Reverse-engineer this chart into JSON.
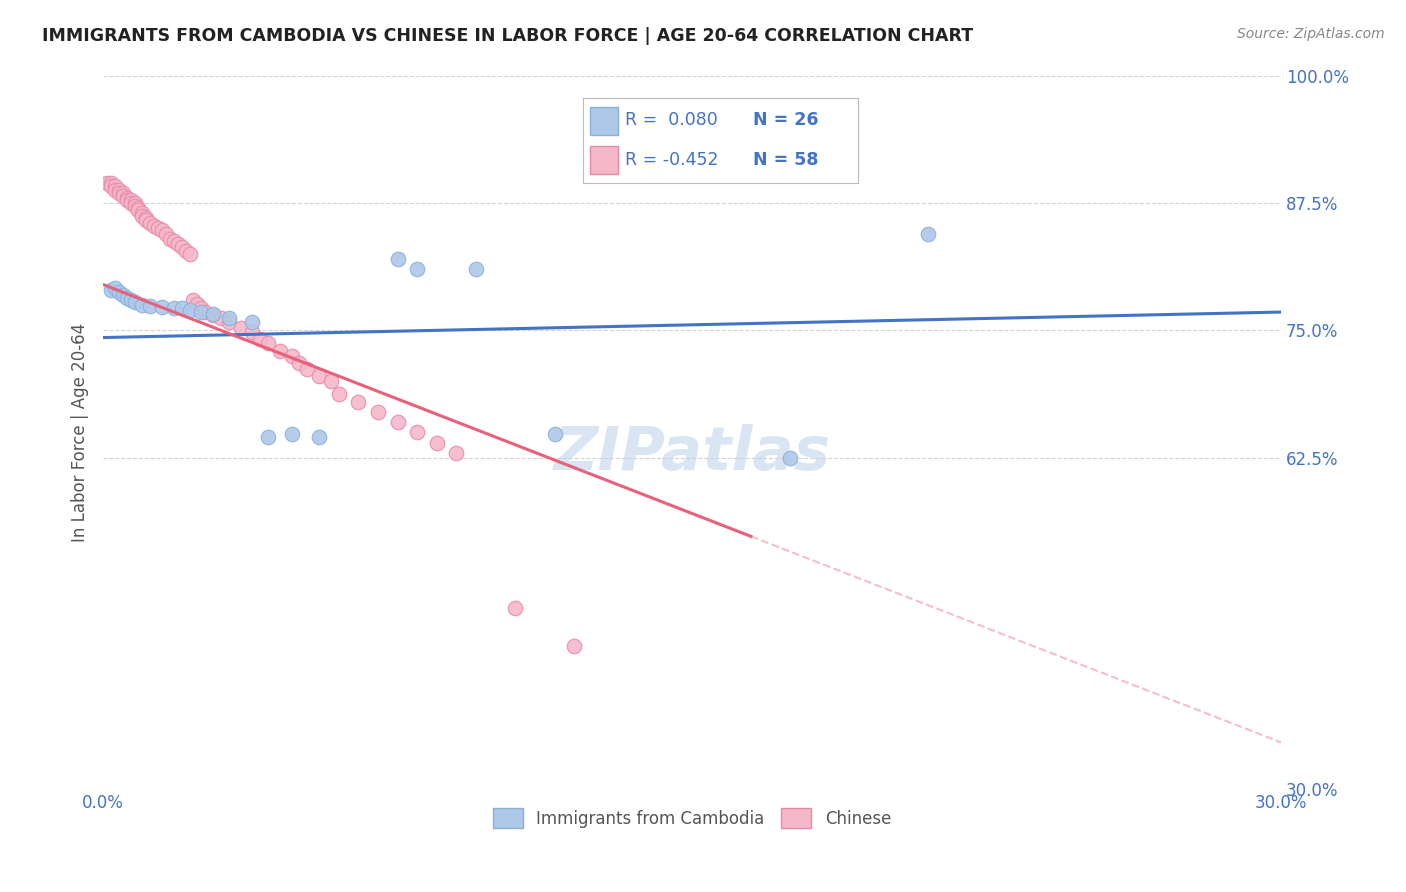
{
  "title": "IMMIGRANTS FROM CAMBODIA VS CHINESE IN LABOR FORCE | AGE 20-64 CORRELATION CHART",
  "source": "Source: ZipAtlas.com",
  "ylabel": "In Labor Force | Age 20-64",
  "xlim": [
    0.0,
    0.3
  ],
  "ylim": [
    0.3,
    1.0
  ],
  "xticks": [
    0.0,
    0.05,
    0.1,
    0.15,
    0.2,
    0.25,
    0.3
  ],
  "xtick_labels": [
    "0.0%",
    "",
    "",
    "",
    "",
    "",
    "30.0%"
  ],
  "yticks": [
    1.0,
    0.875,
    0.75,
    0.625,
    0.3
  ],
  "ytick_labels": [
    "100.0%",
    "87.5%",
    "75.0%",
    "62.5%",
    "30.0%"
  ],
  "background_color": "#ffffff",
  "grid_color": "#c8c8c8",
  "watermark": "ZIPatlas",
  "cambodia_color": "#adc8e8",
  "cambodia_edge": "#8ab0d8",
  "chinese_color": "#f5b8c8",
  "chinese_edge": "#e888a8",
  "regression_cambodia_color": "#4472c4",
  "regression_chinese_color": "#e8607a",
  "title_color": "#222222",
  "axis_color": "#4472c4",
  "legend_text_color": "#4472c4",
  "legend_r_cambodia": "R =  0.080",
  "legend_n_cambodia": "N = 26",
  "legend_r_chinese": "R = -0.452",
  "legend_n_chinese": "N = 58",
  "cambodia_x": [
    0.002,
    0.003,
    0.004,
    0.005,
    0.006,
    0.007,
    0.008,
    0.01,
    0.012,
    0.015,
    0.018,
    0.02,
    0.022,
    0.025,
    0.028,
    0.032,
    0.038,
    0.042,
    0.048,
    0.055,
    0.075,
    0.08,
    0.095,
    0.115,
    0.175,
    0.21
  ],
  "cambodia_y": [
    0.79,
    0.792,
    0.788,
    0.785,
    0.782,
    0.78,
    0.778,
    0.775,
    0.774,
    0.773,
    0.772,
    0.772,
    0.77,
    0.768,
    0.766,
    0.762,
    0.758,
    0.645,
    0.648,
    0.645,
    0.82,
    0.81,
    0.81,
    0.648,
    0.625,
    0.845
  ],
  "chinese_x": [
    0.001,
    0.002,
    0.002,
    0.003,
    0.003,
    0.004,
    0.004,
    0.005,
    0.005,
    0.006,
    0.006,
    0.007,
    0.007,
    0.008,
    0.008,
    0.009,
    0.009,
    0.01,
    0.01,
    0.011,
    0.011,
    0.012,
    0.013,
    0.014,
    0.015,
    0.016,
    0.017,
    0.018,
    0.019,
    0.02,
    0.021,
    0.022,
    0.023,
    0.024,
    0.025,
    0.026,
    0.028,
    0.03,
    0.032,
    0.035,
    0.038,
    0.04,
    0.042,
    0.045,
    0.048,
    0.05,
    0.052,
    0.055,
    0.058,
    0.06,
    0.065,
    0.07,
    0.075,
    0.08,
    0.085,
    0.09,
    0.105,
    0.12
  ],
  "chinese_y": [
    0.895,
    0.895,
    0.892,
    0.892,
    0.888,
    0.888,
    0.885,
    0.885,
    0.882,
    0.88,
    0.878,
    0.878,
    0.875,
    0.875,
    0.872,
    0.87,
    0.868,
    0.865,
    0.862,
    0.86,
    0.858,
    0.855,
    0.852,
    0.85,
    0.848,
    0.845,
    0.84,
    0.838,
    0.835,
    0.832,
    0.828,
    0.825,
    0.78,
    0.776,
    0.772,
    0.768,
    0.765,
    0.762,
    0.758,
    0.752,
    0.748,
    0.742,
    0.738,
    0.73,
    0.725,
    0.718,
    0.712,
    0.705,
    0.7,
    0.688,
    0.68,
    0.67,
    0.66,
    0.65,
    0.64,
    0.63,
    0.478,
    0.44
  ],
  "regression_cambodia_x0": 0.0,
  "regression_cambodia_x1": 0.3,
  "regression_cambodia_y0": 0.743,
  "regression_cambodia_y1": 0.768,
  "regression_chinese_x0": 0.0,
  "regression_chinese_x1": 0.165,
  "regression_chinese_y0": 0.795,
  "regression_chinese_y1": 0.548,
  "regression_chinese_dash_x0": 0.165,
  "regression_chinese_dash_x1": 0.3,
  "regression_chinese_dash_y0": 0.548,
  "regression_chinese_dash_y1": 0.346
}
